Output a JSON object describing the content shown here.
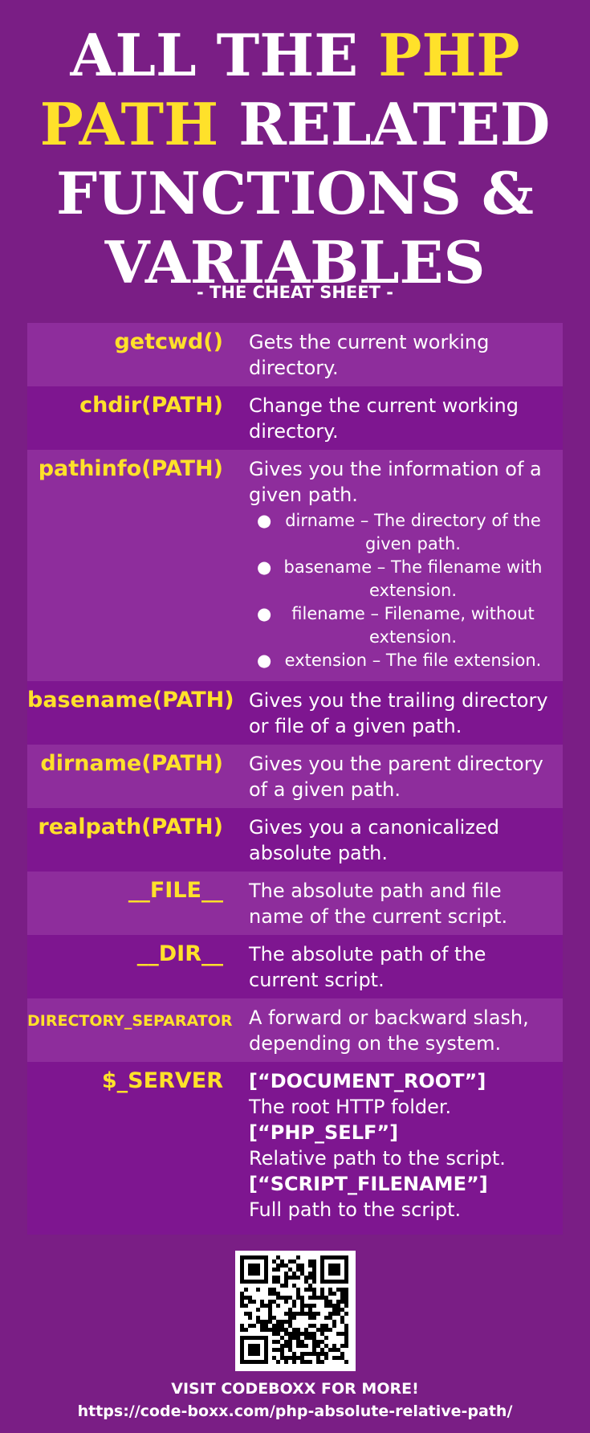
{
  "title": {
    "line1": [
      "ALL THE ",
      "PHP"
    ],
    "line2": [
      "PATH",
      " RELATED"
    ],
    "line3": "FUNCTIONS &",
    "line4": "VARIABLES"
  },
  "subtitle": "- THE CHEAT SHEET -",
  "rows": [
    {
      "fn": "getcwd()",
      "desc": [
        "Gets the current working",
        "directory."
      ]
    },
    {
      "fn": "chdir(PATH)",
      "desc": [
        "Change the current working",
        "directory."
      ]
    },
    {
      "fn": "pathinfo(PATH)",
      "desc": [
        "Gives you the information of a",
        "given path."
      ],
      "bullets": [
        [
          "dirname – The directory of the",
          "given path."
        ],
        [
          "basename – The filename with",
          "extension."
        ],
        [
          "filename – Filename, without",
          "extension."
        ],
        [
          "extension – The file extension."
        ]
      ]
    },
    {
      "fn": "basename(PATH)",
      "desc": [
        "Gives you the trailing directory",
        "or file of a given path."
      ]
    },
    {
      "fn": "dirname(PATH)",
      "desc": [
        "Gives you the parent directory",
        "of a given path."
      ]
    },
    {
      "fn": "realpath(PATH)",
      "desc": [
        "Gives you a canonicalized",
        "absolute path."
      ]
    },
    {
      "fn": "__FILE__",
      "desc": [
        "The absolute path and file",
        "name of the current script."
      ]
    },
    {
      "fn": "__DIR__",
      "desc": [
        "The absolute path of the",
        "current script."
      ]
    },
    {
      "fn": "DIRECTORY_SEPARATOR",
      "desc": [
        "A forward or backward slash,",
        "depending on the system."
      ]
    },
    {
      "fn": "$_SERVER",
      "server": [
        [
          "[“DOCUMENT_ROOT”]",
          "The root HTTP folder."
        ],
        [
          "[“PHP_SELF”]",
          "Relative path to the script."
        ],
        [
          "[“SCRIPT_FILENAME”]",
          "Full path to the script."
        ]
      ]
    }
  ],
  "footer": {
    "cta": "VISIT CODEBOXX FOR MORE!",
    "url": "https://code-boxx.com/php-absolute-relative-path/"
  },
  "colors": {
    "background": "#7a1e85",
    "accent": "#ffe12a",
    "row_light": "#8e2d9c",
    "row_dark": "#7e1690"
  },
  "qr_code": "qr-code-icon"
}
